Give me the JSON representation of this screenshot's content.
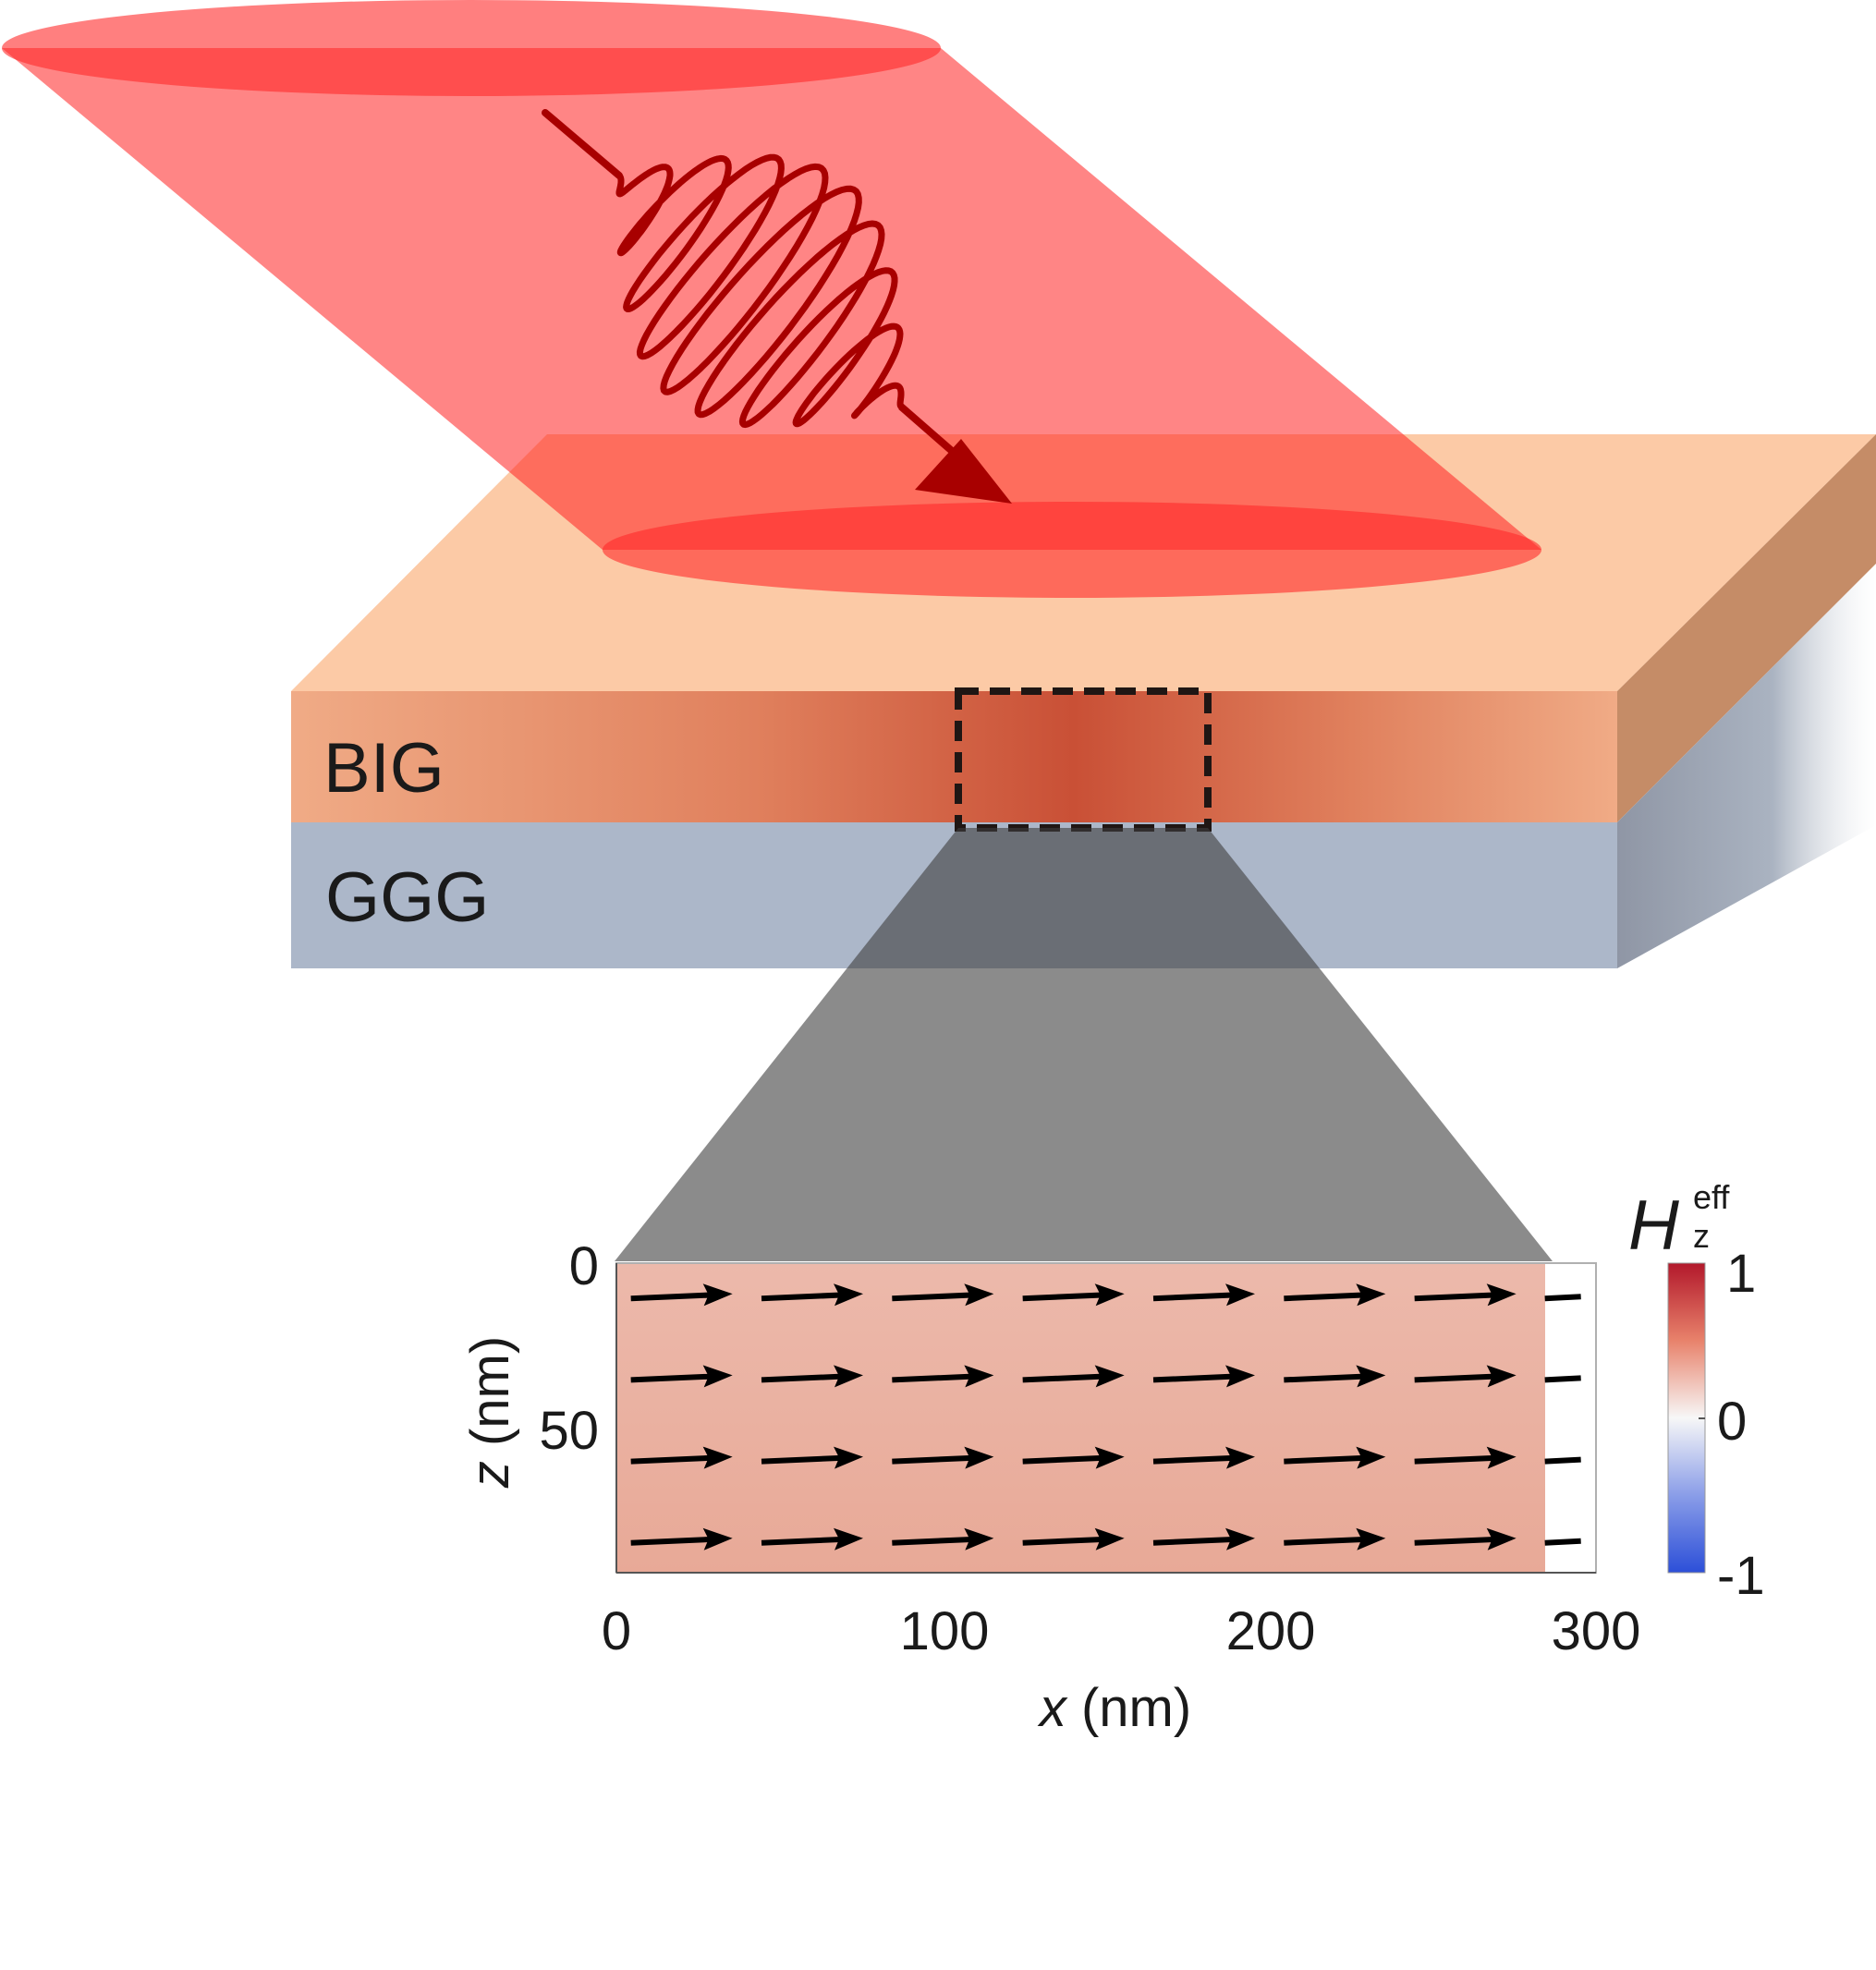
{
  "layers": {
    "top_label": "BIG",
    "bottom_label": "GGG"
  },
  "inset": {
    "xlabel_var": "x",
    "xlabel_unit": " (nm)",
    "ylabel_var": "z",
    "ylabel_unit": " (nm)",
    "x_ticks": [
      "0",
      "100",
      "200",
      "300"
    ],
    "y_ticks": [
      "0",
      "50"
    ],
    "colorbar": {
      "symbol": "H",
      "subscript": "z",
      "superscript": "eff",
      "ticks": [
        "1",
        "0",
        "-1"
      ]
    }
  },
  "colors": {
    "pulse": "#ff3b3b",
    "pulse_arrow": "#a80000",
    "big_layer": "#efa57e",
    "ggg_layer": "#acb7c9",
    "field_map": "#eab4a5",
    "colorbar_high": "#b2182b",
    "colorbar_low": "#2c4fd8"
  },
  "chart_data": {
    "type": "vector field",
    "x_unit": "nm",
    "z_unit": "nm",
    "xlim": [
      0,
      300
    ],
    "zlim": [
      0,
      95
    ],
    "x_ticks": [
      0,
      100,
      200,
      300
    ],
    "z_ticks": [
      0,
      50
    ],
    "colorbar_range": [
      -1,
      1
    ],
    "colorbar_ticks": [
      1,
      0,
      -1
    ],
    "field_value": 0.3,
    "arrow_rows_z": [
      10,
      35,
      60,
      85
    ],
    "arrow_cols_x": [
      20,
      60,
      100,
      140,
      180,
      220,
      260
    ],
    "arrow_direction": "+x",
    "dash_column_x": 290
  }
}
